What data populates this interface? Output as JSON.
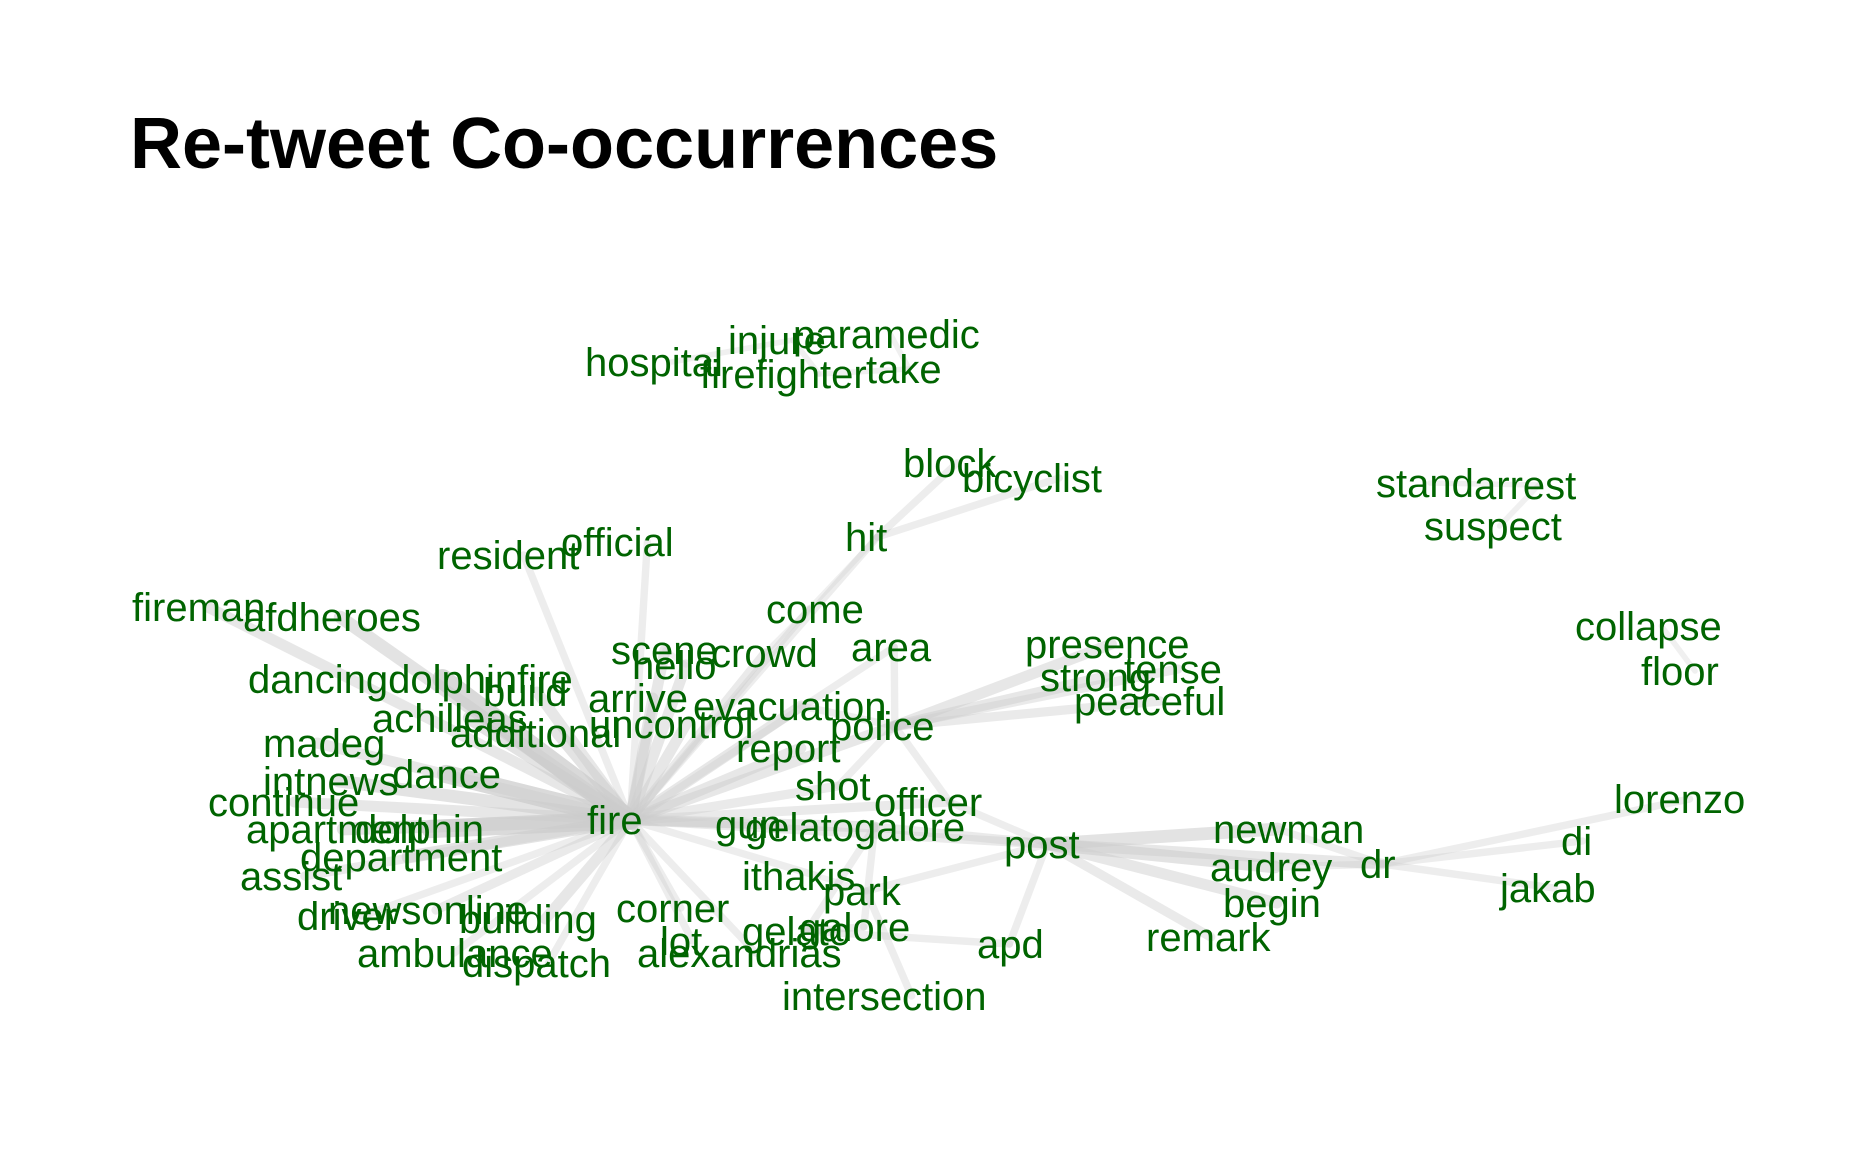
{
  "title": "Re-tweet Co-occurrences",
  "colors": {
    "label": "#006400",
    "edge": "#cccccc",
    "background": "#ffffff"
  },
  "nodes": [
    {
      "id": "hospital"
    },
    {
      "id": "injure"
    },
    {
      "id": "paramedic"
    },
    {
      "id": "firefighter"
    },
    {
      "id": "take"
    },
    {
      "id": "block"
    },
    {
      "id": "bicyclist"
    },
    {
      "id": "stand"
    },
    {
      "id": "arrest"
    },
    {
      "id": "suspect"
    },
    {
      "id": "resident"
    },
    {
      "id": "official"
    },
    {
      "id": "hit"
    },
    {
      "id": "fireman"
    },
    {
      "id": "afdheroes"
    },
    {
      "id": "come"
    },
    {
      "id": "scene"
    },
    {
      "id": "crowd"
    },
    {
      "id": "area"
    },
    {
      "id": "hello"
    },
    {
      "id": "presence"
    },
    {
      "id": "tense"
    },
    {
      "id": "strong"
    },
    {
      "id": "peaceful"
    },
    {
      "id": "collapse"
    },
    {
      "id": "floor"
    },
    {
      "id": "dancingdolphinfire"
    },
    {
      "id": "build"
    },
    {
      "id": "arrive"
    },
    {
      "id": "evacuation"
    },
    {
      "id": "achilleas"
    },
    {
      "id": "additional"
    },
    {
      "id": "uncontrol"
    },
    {
      "id": "police"
    },
    {
      "id": "madeg"
    },
    {
      "id": "report"
    },
    {
      "id": "intnews"
    },
    {
      "id": "dance"
    },
    {
      "id": "shot"
    },
    {
      "id": "continue"
    },
    {
      "id": "officer"
    },
    {
      "id": "lorenzo"
    },
    {
      "id": "apartment"
    },
    {
      "id": "dolphin"
    },
    {
      "id": "fire"
    },
    {
      "id": "gun"
    },
    {
      "id": "gelatogalore"
    },
    {
      "id": "newman"
    },
    {
      "id": "post"
    },
    {
      "id": "di"
    },
    {
      "id": "department"
    },
    {
      "id": "audrey"
    },
    {
      "id": "dr"
    },
    {
      "id": "assist"
    },
    {
      "id": "ithakis"
    },
    {
      "id": "jakab"
    },
    {
      "id": "park"
    },
    {
      "id": "begin"
    },
    {
      "id": "newsonline"
    },
    {
      "id": "driver"
    },
    {
      "id": "corner"
    },
    {
      "id": "building"
    },
    {
      "id": "gelato"
    },
    {
      "id": "galore"
    },
    {
      "id": "remark"
    },
    {
      "id": "lot"
    },
    {
      "id": "apd"
    },
    {
      "id": "ambulance"
    },
    {
      "id": "alexandrias"
    },
    {
      "id": "dispatch"
    },
    {
      "id": "intersection"
    }
  ],
  "edges": [
    {
      "source": "fire",
      "target": "dancingdolphinfire",
      "weight": 10
    },
    {
      "source": "fire",
      "target": "dance",
      "weight": 9
    },
    {
      "source": "fire",
      "target": "dolphin",
      "weight": 9
    },
    {
      "source": "fire",
      "target": "afdheroes",
      "weight": 6
    },
    {
      "source": "fire",
      "target": "fireman",
      "weight": 5
    },
    {
      "source": "fire",
      "target": "achilleas",
      "weight": 6
    },
    {
      "source": "fire",
      "target": "additional",
      "weight": 6
    },
    {
      "source": "fire",
      "target": "madeg",
      "weight": 5
    },
    {
      "source": "fire",
      "target": "intnews",
      "weight": 6
    },
    {
      "source": "fire",
      "target": "continue",
      "weight": 5
    },
    {
      "source": "fire",
      "target": "apartment",
      "weight": 6
    },
    {
      "source": "fire",
      "target": "department",
      "weight": 6
    },
    {
      "source": "fire",
      "target": "assist",
      "weight": 4
    },
    {
      "source": "fire",
      "target": "newsonline",
      "weight": 4
    },
    {
      "source": "fire",
      "target": "driver",
      "weight": 3
    },
    {
      "source": "fire",
      "target": "building",
      "weight": 5
    },
    {
      "source": "fire",
      "target": "ambulance",
      "weight": 3
    },
    {
      "source": "fire",
      "target": "dispatch",
      "weight": 3
    },
    {
      "source": "fire",
      "target": "corner",
      "weight": 3
    },
    {
      "source": "fire",
      "target": "lot",
      "weight": 3
    },
    {
      "source": "fire",
      "target": "alexandrias",
      "weight": 3
    },
    {
      "source": "fire",
      "target": "build",
      "weight": 5
    },
    {
      "source": "fire",
      "target": "scene",
      "weight": 5
    },
    {
      "source": "fire",
      "target": "hello",
      "weight": 5
    },
    {
      "source": "fire",
      "target": "crowd",
      "weight": 4
    },
    {
      "source": "fire",
      "target": "arrive",
      "weight": 5
    },
    {
      "source": "fire",
      "target": "uncontrol",
      "weight": 5
    },
    {
      "source": "fire",
      "target": "evacuation",
      "weight": 5
    },
    {
      "source": "fire",
      "target": "report",
      "weight": 5
    },
    {
      "source": "fire",
      "target": "police",
      "weight": 5
    },
    {
      "source": "fire",
      "target": "resident",
      "weight": 3
    },
    {
      "source": "fire",
      "target": "official",
      "weight": 3
    },
    {
      "source": "fire",
      "target": "come",
      "weight": 3
    },
    {
      "source": "fire",
      "target": "area",
      "weight": 3
    },
    {
      "source": "fire",
      "target": "gun",
      "weight": 4
    },
    {
      "source": "fire",
      "target": "shot",
      "weight": 4
    },
    {
      "source": "fire",
      "target": "gelatogalore",
      "weight": 5
    },
    {
      "source": "fire",
      "target": "officer",
      "weight": 4
    },
    {
      "source": "fire",
      "target": "ithakis",
      "weight": 3
    },
    {
      "source": "fire",
      "target": "post",
      "weight": 4
    },
    {
      "source": "fire",
      "target": "hit",
      "weight": 3
    },
    {
      "source": "police",
      "target": "presence",
      "weight": 5
    },
    {
      "source": "police",
      "target": "strong",
      "weight": 5
    },
    {
      "source": "police",
      "target": "tense",
      "weight": 4
    },
    {
      "source": "police",
      "target": "peaceful",
      "weight": 4
    },
    {
      "source": "police",
      "target": "evacuation",
      "weight": 3
    },
    {
      "source": "police",
      "target": "area",
      "weight": 3
    },
    {
      "source": "police",
      "target": "shot",
      "weight": 3
    },
    {
      "source": "police",
      "target": "officer",
      "weight": 3
    },
    {
      "source": "post",
      "target": "newman",
      "weight": 6
    },
    {
      "source": "post",
      "target": "audrey",
      "weight": 6
    },
    {
      "source": "post",
      "target": "begin",
      "weight": 5
    },
    {
      "source": "post",
      "target": "remark",
      "weight": 4
    },
    {
      "source": "post",
      "target": "dr",
      "weight": 5
    },
    {
      "source": "post",
      "target": "apd",
      "weight": 3
    },
    {
      "source": "post",
      "target": "officer",
      "weight": 3
    },
    {
      "source": "post",
      "target": "gelatogalore",
      "weight": 4
    },
    {
      "source": "post",
      "target": "park",
      "weight": 3
    },
    {
      "source": "dr",
      "target": "di",
      "weight": 3
    },
    {
      "source": "dr",
      "target": "jakab",
      "weight": 3
    },
    {
      "source": "dr",
      "target": "lorenzo",
      "weight": 3
    },
    {
      "source": "dr",
      "target": "newman",
      "weight": 3
    },
    {
      "source": "dr",
      "target": "audrey",
      "weight": 3
    },
    {
      "source": "gelatogalore",
      "target": "gelato",
      "weight": 3
    },
    {
      "source": "gelatogalore",
      "target": "galore",
      "weight": 3
    },
    {
      "source": "gelato",
      "target": "galore",
      "weight": 3
    },
    {
      "source": "gelato",
      "target": "apd",
      "weight": 3
    },
    {
      "source": "park",
      "target": "intersection",
      "weight": 3
    },
    {
      "source": "park",
      "target": "ithakis",
      "weight": 2
    },
    {
      "source": "hit",
      "target": "bicyclist",
      "weight": 3
    },
    {
      "source": "hit",
      "target": "block",
      "weight": 3
    },
    {
      "source": "hit",
      "target": "come",
      "weight": 2
    },
    {
      "source": "hospital",
      "target": "injure",
      "weight": 2
    },
    {
      "source": "injure",
      "target": "firefighter",
      "weight": 2
    },
    {
      "source": "firefighter",
      "target": "take",
      "weight": 2
    },
    {
      "source": "paramedic",
      "target": "take",
      "weight": 2
    },
    {
      "source": "stand",
      "target": "arrest",
      "weight": 2
    },
    {
      "source": "arrest",
      "target": "suspect",
      "weight": 2
    },
    {
      "source": "collapse",
      "target": "floor",
      "weight": 2
    },
    {
      "source": "scene",
      "target": "hello",
      "weight": 2
    },
    {
      "source": "crowd",
      "target": "come",
      "weight": 2
    }
  ]
}
